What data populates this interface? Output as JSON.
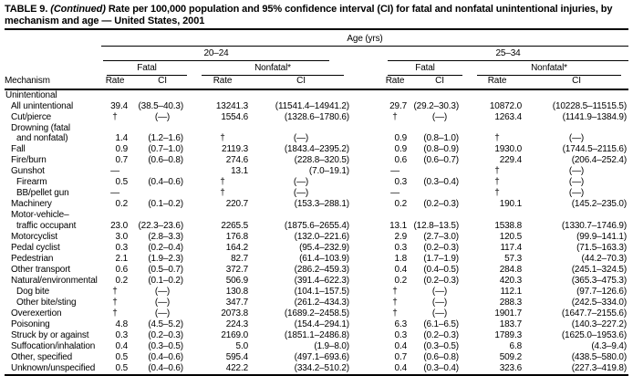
{
  "title": {
    "table_label": "TABLE 9.",
    "continued": "(Continued)",
    "text": "Rate per 100,000 population and 95% confidence interval (CI) for fatal and nonfatal unintentional injuries, by mechanism and age — United States, 2001"
  },
  "header": {
    "age_label": "Age (yrs)",
    "mechanism_label": "Mechanism",
    "fatal_label": "Fatal",
    "nonfatal_label": "Nonfatal*",
    "rate_label": "Rate",
    "ci_label": "CI",
    "groups": [
      {
        "label": "20–24"
      },
      {
        "label": "25–34"
      }
    ]
  },
  "table": {
    "rows": [
      {
        "lines": [
          {
            "text": "Unintentional",
            "indent": 0
          }
        ],
        "values": [
          "",
          "",
          "",
          "",
          "",
          "",
          "",
          ""
        ]
      },
      {
        "lines": [
          {
            "text": "All unintentional",
            "indent": 1
          }
        ],
        "values": [
          "39.4",
          "(38.5–40.3)",
          "13241.3",
          "(11541.4–14941.2)",
          "29.7",
          "(29.2–30.3)",
          "10872.0",
          "(10228.5–11515.5)"
        ]
      },
      {
        "lines": [
          {
            "text": "Cut/pierce",
            "indent": 1
          }
        ],
        "values": [
          "†",
          "(—)",
          "1554.6",
          "(1328.6–1780.6)",
          "†",
          "(—)",
          "1263.4",
          "(1141.9–1384.9)"
        ]
      },
      {
        "lines": [
          {
            "text": "Drowning (fatal",
            "indent": 1
          },
          {
            "text": "and nonfatal)",
            "indent": 2
          }
        ],
        "values": [
          "1.4",
          "(1.2–1.6)",
          "†",
          "(—)",
          "0.9",
          "(0.8–1.0)",
          "†",
          "(—)"
        ]
      },
      {
        "lines": [
          {
            "text": "Fall",
            "indent": 1
          }
        ],
        "values": [
          "0.9",
          "(0.7–1.0)",
          "2119.3",
          "(1843.4–2395.2)",
          "0.9",
          "(0.8–0.9)",
          "1930.0",
          "(1744.5–2115.6)"
        ]
      },
      {
        "lines": [
          {
            "text": "Fire/burn",
            "indent": 1
          }
        ],
        "values": [
          "0.7",
          "(0.6–0.8)",
          "274.6",
          "(228.8–320.5)",
          "0.6",
          "(0.6–0.7)",
          "229.4",
          "(206.4–252.4)"
        ]
      },
      {
        "lines": [
          {
            "text": "Gunshot",
            "indent": 1
          }
        ],
        "values": [
          "—",
          "",
          "13.1",
          "(7.0–19.1)",
          "—",
          "",
          "†",
          "(—)"
        ]
      },
      {
        "lines": [
          {
            "text": "Firearm",
            "indent": 2
          }
        ],
        "values": [
          "0.5",
          "(0.4–0.6)",
          "†",
          "(—)",
          "0.3",
          "(0.3–0.4)",
          "†",
          "(—)"
        ]
      },
      {
        "lines": [
          {
            "text": "BB/pellet gun",
            "indent": 2
          }
        ],
        "values": [
          "—",
          "",
          "†",
          "(—)",
          "—",
          "",
          "†",
          "(—)"
        ]
      },
      {
        "lines": [
          {
            "text": "Machinery",
            "indent": 1
          }
        ],
        "values": [
          "0.2",
          "(0.1–0.2)",
          "220.7",
          "(153.3–288.1)",
          "0.2",
          "(0.2–0.3)",
          "190.1",
          "(145.2–235.0)"
        ]
      },
      {
        "lines": [
          {
            "text": "Motor-vehicle–",
            "indent": 1
          },
          {
            "text": "traffic occupant",
            "indent": 2
          }
        ],
        "values": [
          "23.0",
          "(22.3–23.6)",
          "2265.5",
          "(1875.6–2655.4)",
          "13.1",
          "(12.8–13.5)",
          "1538.8",
          "(1330.7–1746.9)"
        ]
      },
      {
        "lines": [
          {
            "text": "Motorcyclist",
            "indent": 1
          }
        ],
        "values": [
          "3.0",
          "(2.8–3.3)",
          "176.8",
          "(132.0–221.6)",
          "2.9",
          "(2.7–3.0)",
          "120.5",
          "(99.9–141.1)"
        ]
      },
      {
        "lines": [
          {
            "text": "Pedal cyclist",
            "indent": 1
          }
        ],
        "values": [
          "0.3",
          "(0.2–0.4)",
          "164.2",
          "(95.4–232.9)",
          "0.3",
          "(0.2–0.3)",
          "117.4",
          "(71.5–163.3)"
        ]
      },
      {
        "lines": [
          {
            "text": "Pedestrian",
            "indent": 1
          }
        ],
        "values": [
          "2.1",
          "(1.9–2.3)",
          "82.7",
          "(61.4–103.9)",
          "1.8",
          "(1.7–1.9)",
          "57.3",
          "(44.2–70.3)"
        ]
      },
      {
        "lines": [
          {
            "text": "Other transport",
            "indent": 1
          }
        ],
        "values": [
          "0.6",
          "(0.5–0.7)",
          "372.7",
          "(286.2–459.3)",
          "0.4",
          "(0.4–0.5)",
          "284.8",
          "(245.1–324.5)"
        ]
      },
      {
        "lines": [
          {
            "text": "Natural/environmental",
            "indent": 1
          }
        ],
        "values": [
          "0.2",
          "(0.1–0.2)",
          "506.9",
          "(391.4–622.3)",
          "0.2",
          "(0.2–0.3)",
          "420.3",
          "(365.3–475.3)"
        ]
      },
      {
        "lines": [
          {
            "text": "Dog bite",
            "indent": 2
          }
        ],
        "values": [
          "†",
          "(—)",
          "130.8",
          "(104.1–157.5)",
          "†",
          "(—)",
          "112.1",
          "(97.7–126.6)"
        ]
      },
      {
        "lines": [
          {
            "text": "Other bite/sting",
            "indent": 2
          }
        ],
        "values": [
          "†",
          "(—)",
          "347.7",
          "(261.2–434.3)",
          "†",
          "(—)",
          "288.3",
          "(242.5–334.0)"
        ]
      },
      {
        "lines": [
          {
            "text": "Overexertion",
            "indent": 1
          }
        ],
        "values": [
          "†",
          "(—)",
          "2073.8",
          "(1689.2–2458.5)",
          "†",
          "(—)",
          "1901.7",
          "(1647.7–2155.6)"
        ]
      },
      {
        "lines": [
          {
            "text": "Poisoning",
            "indent": 1
          }
        ],
        "values": [
          "4.8",
          "(4.5–5.2)",
          "224.3",
          "(154.4–294.1)",
          "6.3",
          "(6.1–6.5)",
          "183.7",
          "(140.3–227.2)"
        ]
      },
      {
        "lines": [
          {
            "text": "Struck by or against",
            "indent": 1
          }
        ],
        "values": [
          "0.3",
          "(0.2–0.3)",
          "2169.0",
          "(1851.1–2486.8)",
          "0.3",
          "(0.2–0.3)",
          "1789.3",
          "(1625.0–1953.6)"
        ]
      },
      {
        "lines": [
          {
            "text": "Suffocation/inhalation",
            "indent": 1
          }
        ],
        "values": [
          "0.4",
          "(0.3–0.5)",
          "5.0",
          "(1.9–8.0)",
          "0.4",
          "(0.3–0.5)",
          "6.8",
          "(4.3–9.4)"
        ]
      },
      {
        "lines": [
          {
            "text": "Other, specified",
            "indent": 1
          }
        ],
        "values": [
          "0.5",
          "(0.4–0.6)",
          "595.4",
          "(497.1–693.6)",
          "0.7",
          "(0.6–0.8)",
          "509.2",
          "(438.5–580.0)"
        ]
      },
      {
        "lines": [
          {
            "text": "Unknown/unspecified",
            "indent": 1
          }
        ],
        "values": [
          "0.5",
          "(0.4–0.6)",
          "422.2",
          "(334.2–510.2)",
          "0.4",
          "(0.3–0.4)",
          "323.6",
          "(227.3–419.8)"
        ]
      }
    ]
  }
}
